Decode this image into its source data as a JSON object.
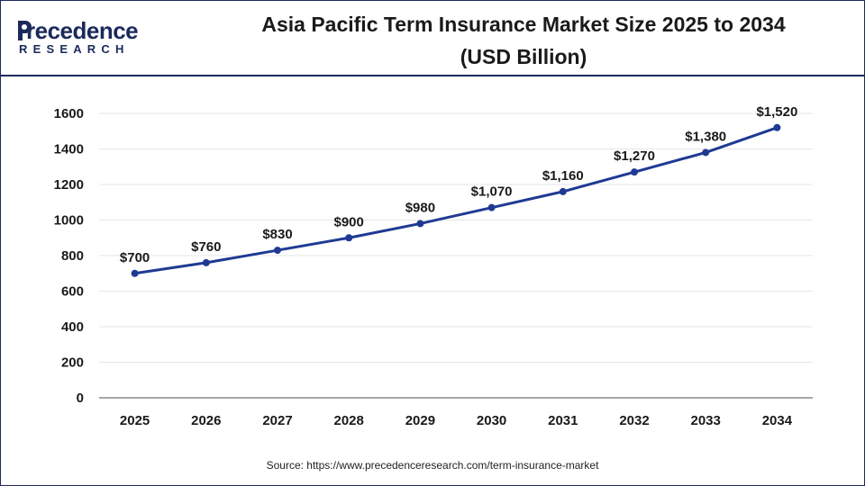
{
  "logo": {
    "word": "recedence",
    "initial": "P",
    "sub": "RESEARCH"
  },
  "header": {
    "title_line1": "Asia Pacific Term Insurance Market Size 2025 to 2034",
    "title_line2": "(USD Billion)"
  },
  "source": "Source: https://www.precedenceresearch.com/term-insurance-market",
  "colors": {
    "line": "#1f3a93",
    "axis": "#888888",
    "grid": "#e6e6e6",
    "brand": "#1b2a5c"
  },
  "chart_data": {
    "type": "line",
    "title": "Asia Pacific Term Insurance Market Size 2025 to 2034 (USD Billion)",
    "x": [
      "2025",
      "2026",
      "2027",
      "2028",
      "2029",
      "2030",
      "2031",
      "2032",
      "2033",
      "2034"
    ],
    "series": [
      {
        "values": [
          700,
          760,
          830,
          900,
          980,
          1070,
          1160,
          1270,
          1380,
          1520
        ],
        "labels": [
          "$700",
          "$760",
          "$830",
          "$900",
          "$980",
          "$1,070",
          "$1,160",
          "$1,270",
          "$1,380",
          "$1,520"
        ]
      }
    ],
    "ylim": [
      0,
      1600
    ],
    "yticks": [
      0,
      200,
      400,
      600,
      800,
      1000,
      1200,
      1400,
      1600
    ],
    "grid": true,
    "xlabel": "",
    "ylabel": ""
  }
}
